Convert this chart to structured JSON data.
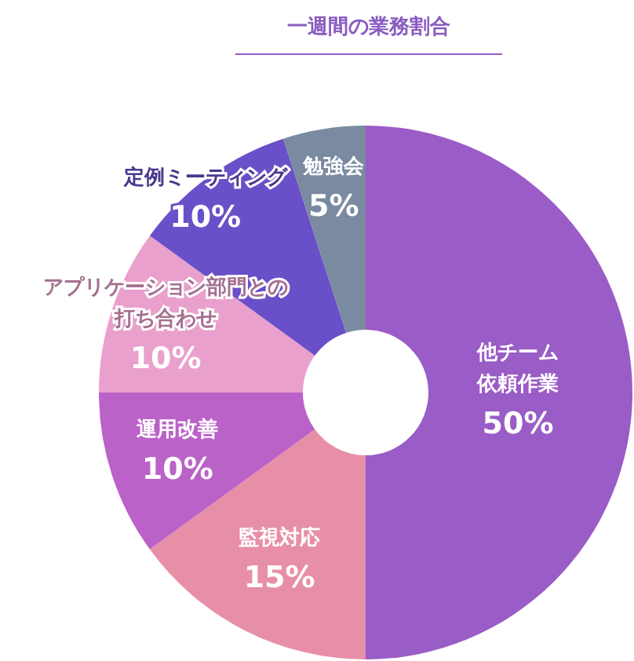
{
  "chart_data": {
    "type": "donut",
    "title": "一週間の業務割合",
    "categories": [
      "他チーム依頼作業",
      "監視対応",
      "運用改善",
      "アプリケーション部門との打ち合わせ",
      "定例ミーティング",
      "勉強会"
    ],
    "values": [
      50,
      15,
      10,
      10,
      10,
      5
    ],
    "value_labels": [
      "50%",
      "15%",
      "10%",
      "10%",
      "10%",
      "5%"
    ],
    "colors": [
      "#9a5cc6",
      "#e88fa8",
      "#bb62c9",
      "#e9a0cc",
      "#6a50c8",
      "#7a8aa0"
    ],
    "legend": false
  }
}
